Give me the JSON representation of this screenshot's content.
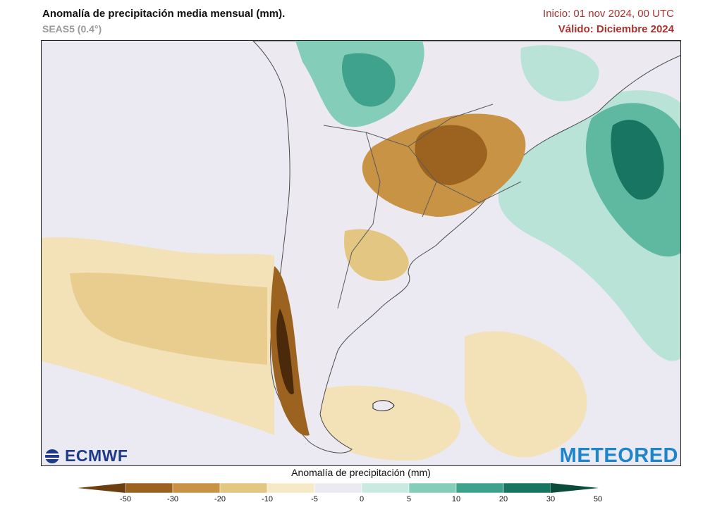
{
  "header": {
    "title": "Anomalía de precipitación media mensual (mm).",
    "subtitle": "SEAS5 (0.4°)",
    "init": "Inicio: 01 nov 2024, 00 UTC",
    "valid": "Válido: Diciembre 2024"
  },
  "logos": {
    "left": "ECMWF",
    "right": "METEORED"
  },
  "legend": {
    "title": "Anomalía de precipitación (mm)",
    "ticks": [
      "-50",
      "-30",
      "-20",
      "-10",
      "-5",
      "0",
      "5",
      "10",
      "20",
      "30",
      "50"
    ],
    "colors": [
      "#6b3f10",
      "#9c6320",
      "#c89344",
      "#e3c682",
      "#f6e9c5",
      "#ebeaf3",
      "#c8eae1",
      "#84cdb9",
      "#3fa28c",
      "#177561",
      "#0b4b3c"
    ]
  },
  "map": {
    "ocean_color": "#ebeaf3",
    "land_color": "#eceaf0",
    "border_color": "#4a4a4a"
  }
}
